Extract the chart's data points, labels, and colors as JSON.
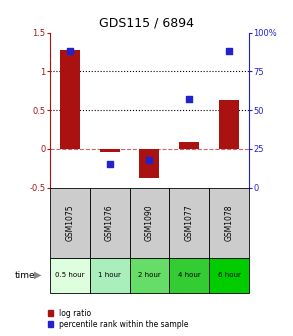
{
  "title": "GDS115 / 6894",
  "samples": [
    "GSM1075",
    "GSM1076",
    "GSM1090",
    "GSM1077",
    "GSM1078"
  ],
  "time_labels": [
    "0.5 hour",
    "1 hour",
    "2 hour",
    "4 hour",
    "6 hour"
  ],
  "log_ratios": [
    1.28,
    -0.04,
    -0.38,
    0.09,
    0.63
  ],
  "percentile_ranks": [
    88,
    15,
    18,
    57,
    88
  ],
  "bar_color": "#aa1111",
  "dot_color": "#2222cc",
  "ylim_left": [
    -0.5,
    1.5
  ],
  "ylim_right": [
    0,
    100
  ],
  "yticks_left": [
    -0.5,
    0,
    0.5,
    1.0,
    1.5
  ],
  "yticks_right": [
    0,
    25,
    50,
    75,
    100
  ],
  "ytick_labels_left": [
    "-0.5",
    "0",
    "0.5",
    "1",
    "1.5"
  ],
  "ytick_labels_right": [
    "0",
    "25",
    "50",
    "75",
    "100%"
  ],
  "hlines_dotted": [
    0.5,
    1.0
  ],
  "hline_dashed": 0.0,
  "legend_items": [
    "log ratio",
    "percentile rank within the sample"
  ],
  "legend_colors": [
    "#aa1111",
    "#2222cc"
  ],
  "bar_width": 0.5,
  "dot_size": 25,
  "time_colors": [
    "#ddffdd",
    "#aaeebb",
    "#66dd66",
    "#33cc33",
    "#00cc00"
  ]
}
